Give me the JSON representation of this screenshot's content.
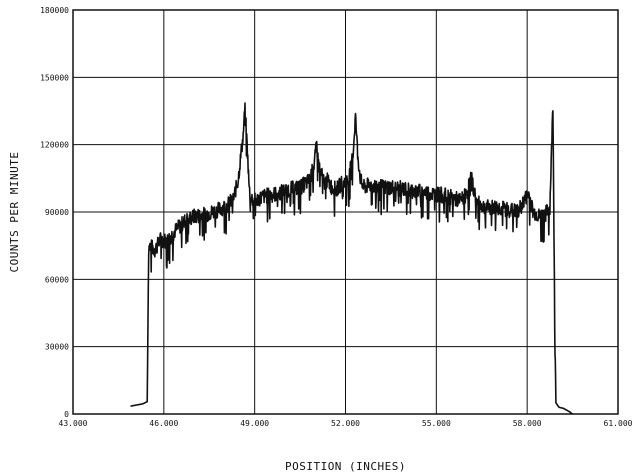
{
  "chart_data": {
    "type": "line",
    "title": "",
    "xlabel": "POSITION (INCHES)",
    "ylabel": "COUNTS PER MINUTE",
    "xlim": [
      43.0,
      61.0
    ],
    "ylim": [
      0,
      180000
    ],
    "x_ticks": [
      "43.000",
      "46.000",
      "49.000",
      "52.000",
      "55.000",
      "58.000",
      "61.000"
    ],
    "y_ticks": [
      "0",
      "30000",
      "60000",
      "90000",
      "120000",
      "150000",
      "180000"
    ],
    "grid": true,
    "line_color": "#111111",
    "series": [
      {
        "x": [
          44.9,
          45.3,
          45.45,
          45.5,
          45.55,
          45.7,
          45.9,
          46.1,
          46.4,
          46.7,
          47.0,
          47.4,
          47.8,
          48.1,
          48.3,
          48.45,
          48.55,
          48.62,
          48.68,
          48.75,
          48.82,
          48.9,
          49.0,
          49.3,
          49.7,
          50.1,
          50.5,
          50.8,
          50.95,
          51.05,
          51.1,
          51.2,
          51.3,
          51.4,
          51.55,
          51.7,
          51.9,
          52.1,
          52.25,
          52.33,
          52.4,
          52.5,
          52.6,
          52.8,
          53.2,
          53.6,
          54.0,
          54.5,
          55.0,
          55.4,
          55.8,
          56.0,
          56.15,
          56.25,
          56.35,
          56.6,
          57.0,
          57.4,
          57.7,
          57.9,
          58.05,
          58.2,
          58.4,
          58.6,
          58.75,
          58.85,
          58.9,
          58.95,
          59.05,
          59.2,
          59.4,
          59.5
        ],
        "y": [
          3500,
          4500,
          5500,
          74000,
          75000,
          73000,
          78000,
          77000,
          82000,
          86000,
          88000,
          89000,
          91000,
          93000,
          96000,
          104000,
          116000,
          124000,
          137000,
          120000,
          100000,
          96000,
          95000,
          97000,
          98000,
          100000,
          101000,
          104000,
          110000,
          120000,
          112000,
          107000,
          103000,
          104000,
          101000,
          100000,
          103000,
          104000,
          116000,
          133000,
          116000,
          104000,
          101000,
          102000,
          101000,
          101000,
          100000,
          99000,
          98000,
          97000,
          95000,
          98000,
          106000,
          99000,
          94000,
          92000,
          92000,
          91000,
          90000,
          95000,
          98000,
          90000,
          88000,
          89000,
          92000,
          138000,
          60000,
          5000,
          3000,
          2500,
          1000,
          0
        ]
      }
    ]
  }
}
